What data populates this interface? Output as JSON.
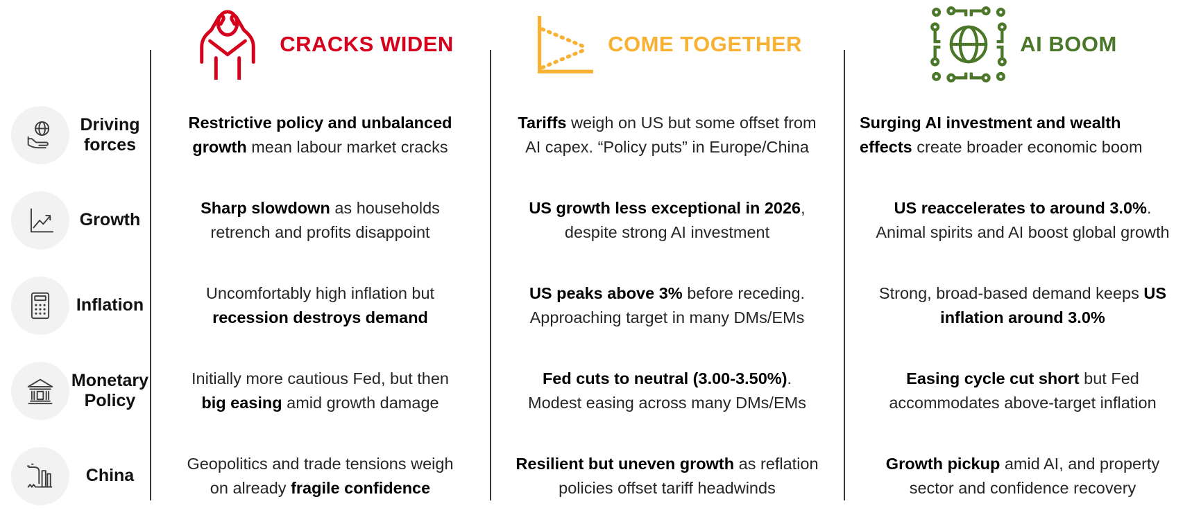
{
  "palette": {
    "cracks_red": "#D6001C",
    "together_orange": "#F8B133",
    "ai_green": "#4A7729",
    "icon_gray": "#3d3d3d",
    "icon_circle_bg": "#f2f2f2",
    "divider": "#3a3a3a",
    "text": "#262626",
    "bold_text": "#000000"
  },
  "scenarios": [
    {
      "id": "cracks-widen",
      "title": "CRACKS WIDEN",
      "color": "#D6001C",
      "icon": "stressed-person-icon"
    },
    {
      "id": "come-together",
      "title": "COME TOGETHER",
      "color": "#F8B133",
      "icon": "converging-lines-chart-icon"
    },
    {
      "id": "ai-boom",
      "title": "AI BOOM",
      "color": "#4A7729",
      "icon": "globe-circuit-icon"
    }
  ],
  "rows": [
    {
      "label": "Driving\nforces",
      "icon": "hand-globe-icon",
      "cells": [
        {
          "segments": [
            {
              "t": "Restrictive policy and unbalanced\ngrowth",
              "b": true
            },
            {
              "t": " mean labour market cracks",
              "b": false
            }
          ]
        },
        {
          "segments": [
            {
              "t": "Tariffs",
              "b": true
            },
            {
              "t": " weigh on US but some offset from\nAI capex. “Policy puts” in Europe/China",
              "b": false
            }
          ]
        },
        {
          "segments": [
            {
              "t": "Surging AI investment and wealth\neffects",
              "b": true
            },
            {
              "t": " create broader economic boom",
              "b": false
            }
          ]
        }
      ]
    },
    {
      "label": "Growth",
      "icon": "growth-chart-icon",
      "cells": [
        {
          "segments": [
            {
              "t": "Sharp slowdown",
              "b": true
            },
            {
              "t": " as households\nretrench and profits disappoint",
              "b": false
            }
          ]
        },
        {
          "segments": [
            {
              "t": "US growth less exceptional in 2026",
              "b": true
            },
            {
              "t": ",\ndespite strong AI investment",
              "b": false
            }
          ]
        },
        {
          "segments": [
            {
              "t": "US reaccelerates to around 3.0%",
              "b": true
            },
            {
              "t": ".\nAnimal spirits and AI boost global growth",
              "b": false
            }
          ]
        }
      ]
    },
    {
      "label": "Inflation",
      "icon": "calculator-icon",
      "cells": [
        {
          "segments": [
            {
              "t": "Uncomfortably high inflation but\n",
              "b": false
            },
            {
              "t": "recession destroys demand",
              "b": true
            }
          ]
        },
        {
          "segments": [
            {
              "t": "US peaks above 3%",
              "b": true
            },
            {
              "t": " before receding.\nApproaching target in many DMs/EMs",
              "b": false
            }
          ]
        },
        {
          "segments": [
            {
              "t": "Strong, broad-based demand keeps ",
              "b": false
            },
            {
              "t": "US\ninflation around 3.0%",
              "b": true
            }
          ]
        }
      ]
    },
    {
      "label": "Monetary\nPolicy",
      "icon": "bank-icon",
      "cells": [
        {
          "segments": [
            {
              "t": "Initially more cautious Fed, but then\n",
              "b": false
            },
            {
              "t": "big easing",
              "b": true
            },
            {
              "t": " amid growth damage",
              "b": false
            }
          ]
        },
        {
          "segments": [
            {
              "t": "Fed cuts to neutral (3.00-3.50%)",
              "b": true
            },
            {
              "t": ".\nModest easing across many DMs/EMs",
              "b": false
            }
          ]
        },
        {
          "segments": [
            {
              "t": "Easing cycle cut short",
              "b": true
            },
            {
              "t": " but Fed\naccommodates above-target inflation",
              "b": false
            }
          ]
        }
      ]
    },
    {
      "label": "China",
      "icon": "factory-icon",
      "cells": [
        {
          "segments": [
            {
              "t": "Geopolitics and trade tensions weigh\non already ",
              "b": false
            },
            {
              "t": "fragile confidence",
              "b": true
            }
          ]
        },
        {
          "segments": [
            {
              "t": "Resilient but uneven growth",
              "b": true
            },
            {
              "t": " as reflation\npolicies offset tariff headwinds",
              "b": false
            }
          ]
        },
        {
          "segments": [
            {
              "t": "Growth pickup",
              "b": true
            },
            {
              "t": " amid AI, and property\nsector and confidence recovery",
              "b": false
            }
          ]
        }
      ]
    }
  ]
}
